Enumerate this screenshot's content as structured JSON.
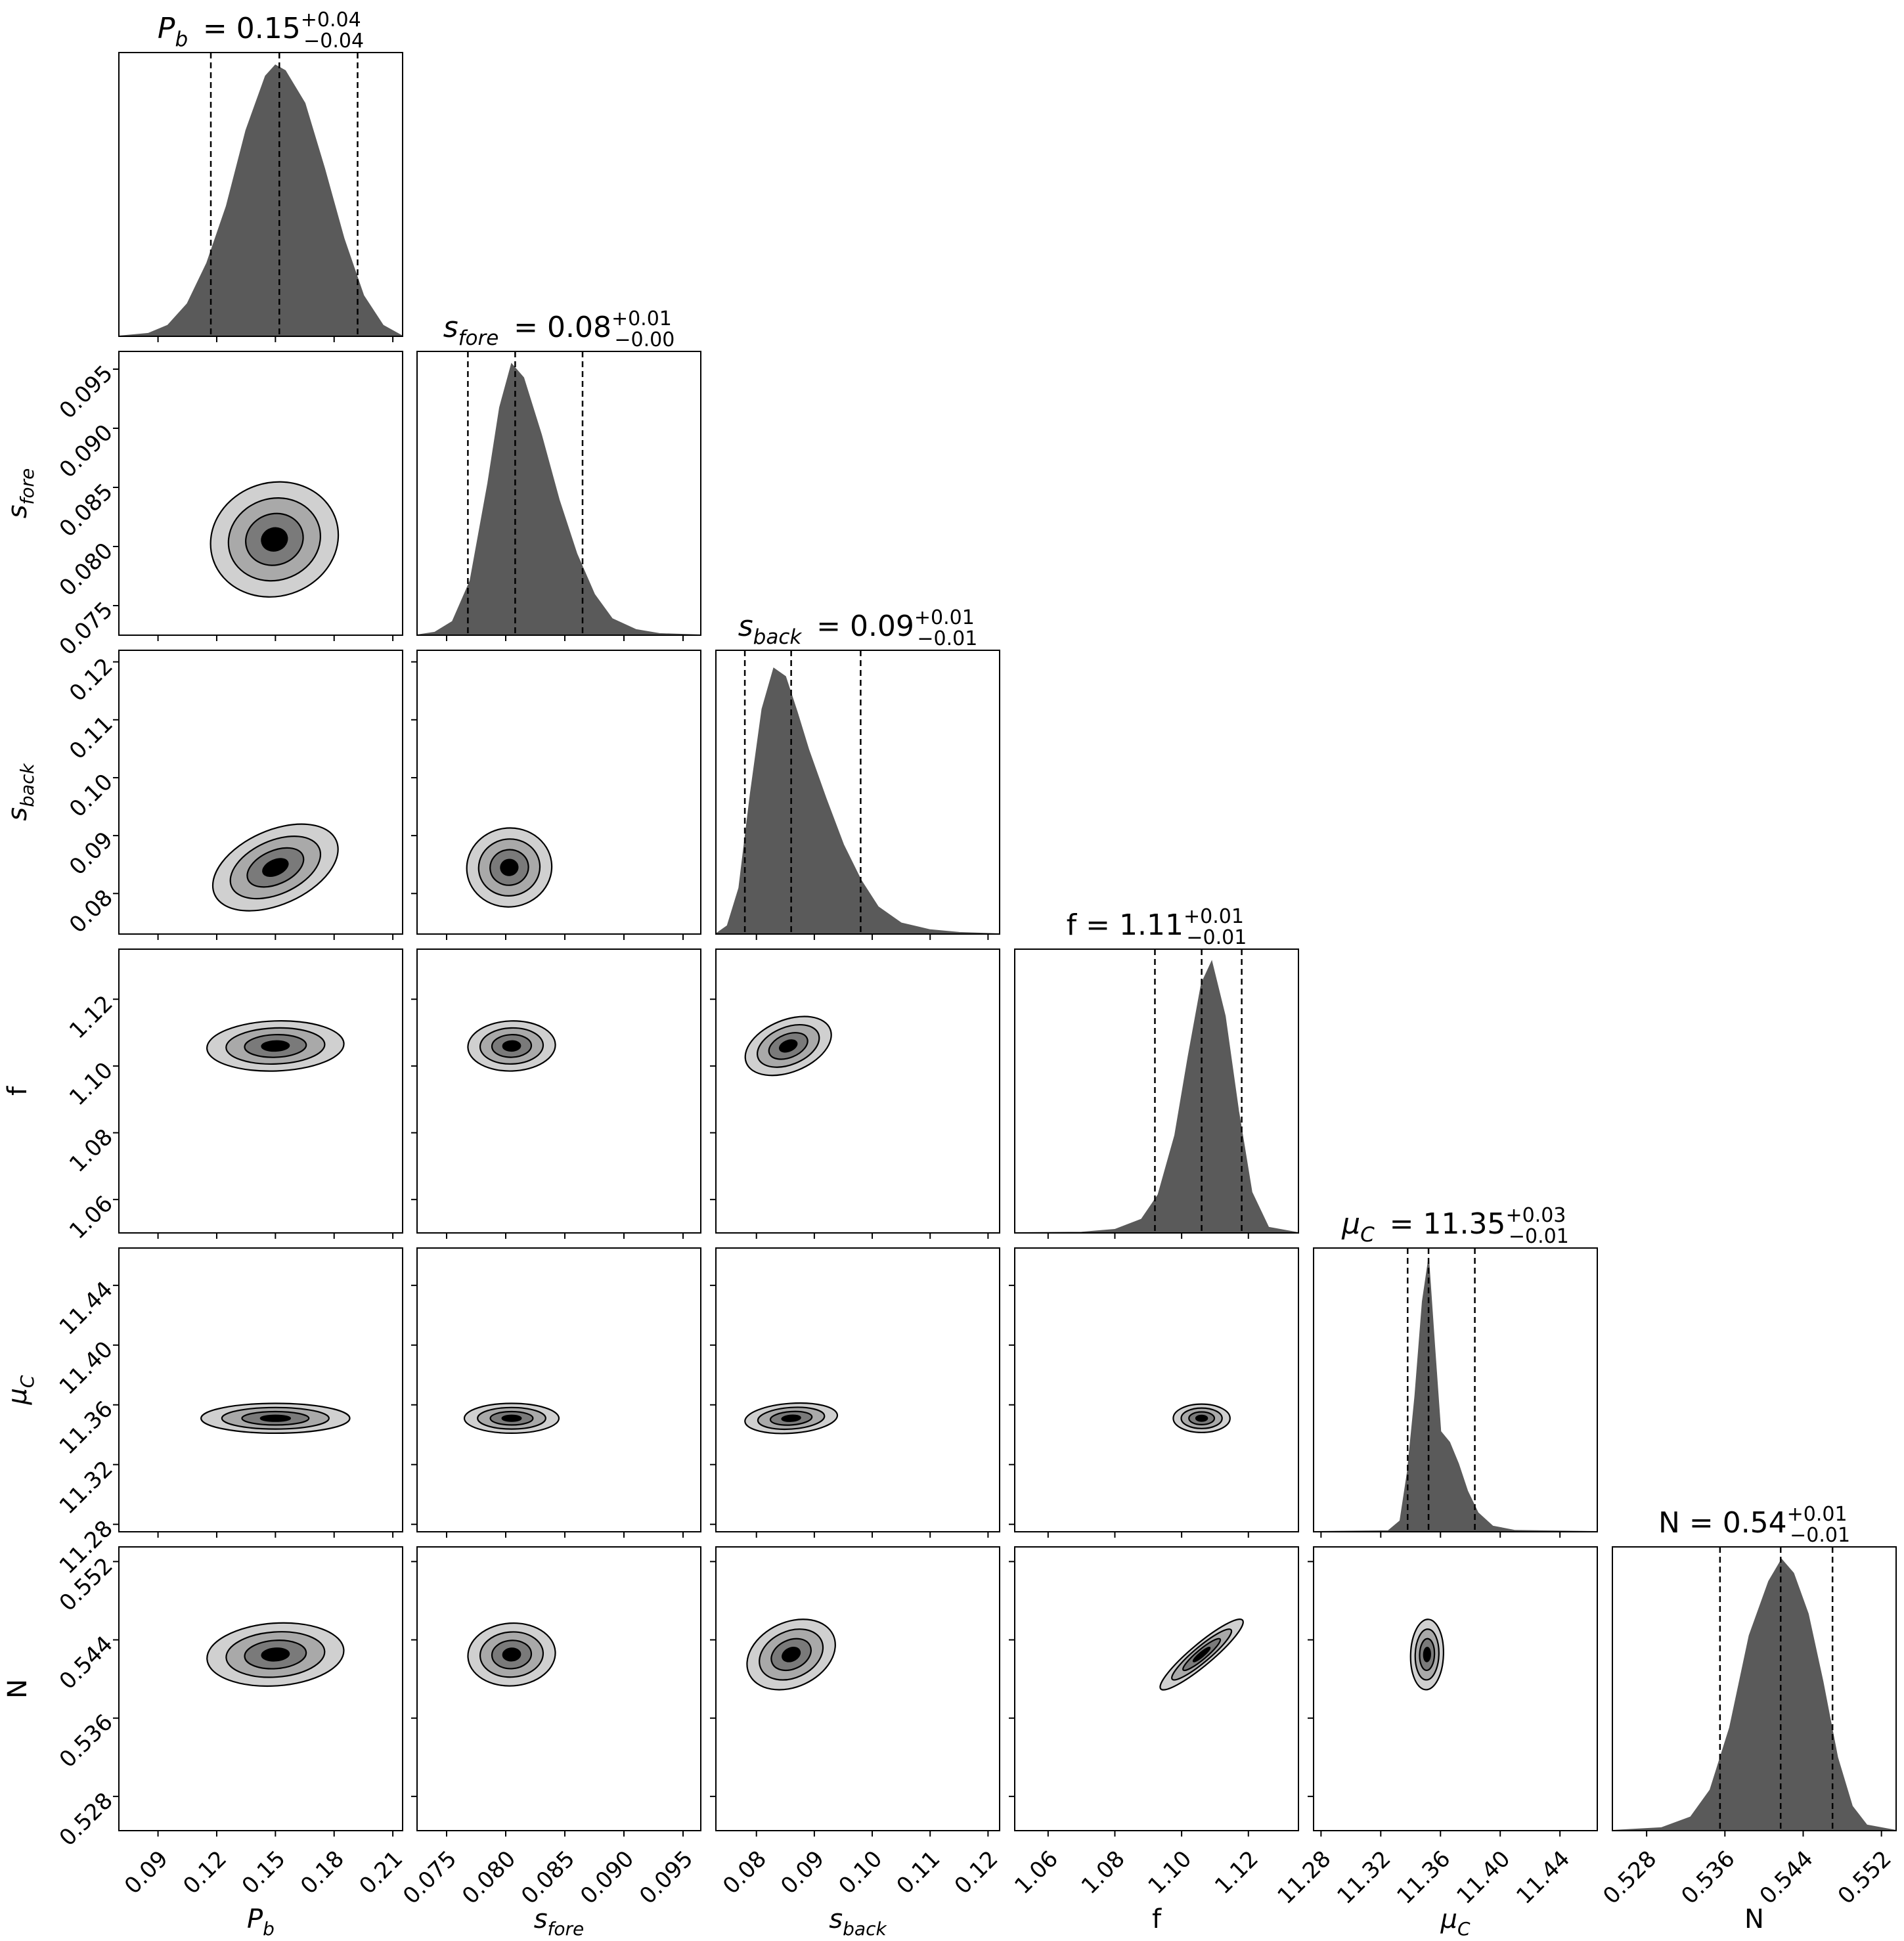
{
  "chart_data": {
    "type": "corner",
    "grid": false,
    "params": [
      {
        "name": "Pb",
        "axis_label": "P",
        "axis_sub": "b",
        "title_sym": "P",
        "title_sub": "b",
        "median": "0.15",
        "plus": "+0.04",
        "minus": "−0.04",
        "range": [
          0.07,
          0.215
        ],
        "q16": 0.117,
        "q50": 0.152,
        "q84": 0.192,
        "ticks": [
          "0.09",
          "0.12",
          "0.15",
          "0.18",
          "0.21"
        ],
        "tick_values": [
          0.09,
          0.12,
          0.15,
          0.18,
          0.21
        ],
        "hist_x": [
          0.07,
          0.085,
          0.095,
          0.105,
          0.115,
          0.125,
          0.135,
          0.145,
          0.15,
          0.155,
          0.165,
          0.175,
          0.185,
          0.195,
          0.205,
          0.215
        ],
        "hist_y": [
          0,
          0.01,
          0.04,
          0.12,
          0.27,
          0.48,
          0.76,
          0.96,
          1.0,
          0.98,
          0.86,
          0.62,
          0.36,
          0.15,
          0.04,
          0.0
        ]
      },
      {
        "name": "sfore",
        "axis_label": "s",
        "axis_sub": "fore",
        "title_sym": "s",
        "title_sub": "fore",
        "median": "0.08",
        "plus": "+0.01",
        "minus": "−0.00",
        "range": [
          0.0725,
          0.0965
        ],
        "q16": 0.0768,
        "q50": 0.0808,
        "q84": 0.0865,
        "ticks": [
          "0.075",
          "0.080",
          "0.085",
          "0.090",
          "0.095"
        ],
        "tick_values": [
          0.075,
          0.08,
          0.085,
          0.09,
          0.095
        ],
        "hist_x": [
          0.0725,
          0.074,
          0.0755,
          0.077,
          0.0785,
          0.0795,
          0.0805,
          0.0815,
          0.083,
          0.0845,
          0.086,
          0.0875,
          0.089,
          0.091,
          0.093,
          0.0965
        ],
        "hist_y": [
          0,
          0.01,
          0.05,
          0.2,
          0.56,
          0.84,
          1.0,
          0.95,
          0.74,
          0.5,
          0.3,
          0.15,
          0.06,
          0.02,
          0.005,
          0
        ]
      },
      {
        "name": "sback",
        "axis_label": "s",
        "axis_sub": "back",
        "title_sym": "s",
        "title_sub": "back",
        "median": "0.09",
        "plus": "+0.01",
        "minus": "−0.01",
        "range": [
          0.073,
          0.122
        ],
        "q16": 0.078,
        "q50": 0.086,
        "q84": 0.098,
        "ticks": [
          "0.08",
          "0.09",
          "0.10",
          "0.11",
          "0.12"
        ],
        "tick_values": [
          0.08,
          0.09,
          0.1,
          0.11,
          0.12
        ],
        "hist_x": [
          0.073,
          0.075,
          0.077,
          0.079,
          0.081,
          0.083,
          0.085,
          0.087,
          0.089,
          0.092,
          0.095,
          0.098,
          0.101,
          0.105,
          0.11,
          0.115,
          0.122
        ],
        "hist_y": [
          0,
          0.03,
          0.17,
          0.52,
          0.83,
          0.98,
          0.95,
          0.82,
          0.68,
          0.5,
          0.33,
          0.2,
          0.1,
          0.04,
          0.015,
          0.005,
          0
        ]
      },
      {
        "name": "f",
        "axis_label": "f",
        "axis_sub": "",
        "title_sym": "f",
        "title_sub": "",
        "median": "1.11",
        "plus": "+0.01",
        "minus": "−0.01",
        "range": [
          1.05,
          1.135
        ],
        "q16": 1.092,
        "q50": 1.106,
        "q84": 1.118,
        "ticks": [
          "1.06",
          "1.08",
          "1.10",
          "1.12"
        ],
        "tick_values": [
          1.06,
          1.08,
          1.1,
          1.12
        ],
        "hist_x": [
          1.05,
          1.07,
          1.08,
          1.088,
          1.093,
          1.098,
          1.102,
          1.106,
          1.109,
          1.113,
          1.117,
          1.121,
          1.126,
          1.135
        ],
        "hist_y": [
          0,
          0.002,
          0.012,
          0.05,
          0.14,
          0.36,
          0.65,
          0.92,
          1.0,
          0.8,
          0.45,
          0.15,
          0.02,
          0
        ]
      },
      {
        "name": "muC",
        "axis_label": "μ",
        "axis_sub": "C",
        "title_sym": "μ",
        "title_sub": "C",
        "median": "11.35",
        "plus": "+0.03",
        "minus": "−0.01",
        "range": [
          11.275,
          11.465
        ],
        "q16": 11.338,
        "q50": 11.352,
        "q84": 11.383,
        "ticks": [
          "11.28",
          "11.32",
          "11.36",
          "11.40",
          "11.44"
        ],
        "tick_values": [
          11.28,
          11.32,
          11.36,
          11.4,
          11.44
        ],
        "hist_x": [
          11.275,
          11.325,
          11.333,
          11.338,
          11.343,
          11.348,
          11.352,
          11.356,
          11.36,
          11.366,
          11.372,
          11.378,
          11.385,
          11.395,
          11.41,
          11.465
        ],
        "hist_y": [
          0,
          0.003,
          0.04,
          0.22,
          0.5,
          0.85,
          1.0,
          0.68,
          0.37,
          0.33,
          0.25,
          0.15,
          0.07,
          0.02,
          0.004,
          0
        ]
      },
      {
        "name": "N",
        "axis_label": "N",
        "axis_sub": "",
        "title_sym": "N",
        "title_sub": "",
        "median": "0.54",
        "plus": "+0.01",
        "minus": "−0.01",
        "range": [
          0.5245,
          0.5535
        ],
        "q16": 0.5355,
        "q50": 0.5417,
        "q84": 0.547,
        "ticks": [
          "0.528",
          "0.536",
          "0.544",
          "0.552"
        ],
        "tick_values": [
          0.528,
          0.536,
          0.544,
          0.552
        ],
        "hist_x": [
          0.5245,
          0.5295,
          0.5325,
          0.5345,
          0.5365,
          0.5385,
          0.5405,
          0.5418,
          0.543,
          0.5445,
          0.546,
          0.5475,
          0.549,
          0.5505,
          0.5535
        ],
        "hist_y": [
          0,
          0.01,
          0.05,
          0.15,
          0.38,
          0.72,
          0.92,
          1.0,
          0.95,
          0.8,
          0.55,
          0.27,
          0.09,
          0.02,
          0
        ]
      }
    ],
    "pairs": [
      {
        "x": 0,
        "y": 1,
        "cx": 0.1495,
        "cy": 0.0806,
        "wx": 0.033,
        "wy": 0.0048,
        "rot": -18
      },
      {
        "x": 0,
        "y": 2,
        "cx": 0.15,
        "cy": 0.0845,
        "wx": 0.034,
        "wy": 0.0064,
        "rot": -24
      },
      {
        "x": 1,
        "y": 2,
        "cx": 0.0803,
        "cy": 0.0845,
        "wx": 0.0036,
        "wy": 0.0068,
        "rot": -8
      },
      {
        "x": 0,
        "y": 3,
        "cx": 0.15,
        "cy": 1.106,
        "wx": 0.035,
        "wy": 0.0075,
        "rot": -2
      },
      {
        "x": 1,
        "y": 3,
        "cx": 0.0805,
        "cy": 1.106,
        "wx": 0.0037,
        "wy": 0.0075,
        "rot": -2
      },
      {
        "x": 2,
        "y": 3,
        "cx": 0.0855,
        "cy": 1.106,
        "wx": 0.0078,
        "wy": 0.0078,
        "rot": -22
      },
      {
        "x": 0,
        "y": 4,
        "cx": 0.15,
        "cy": 11.351,
        "wx": 0.038,
        "wy": 0.01,
        "rot": 0
      },
      {
        "x": 1,
        "y": 4,
        "cx": 0.0805,
        "cy": 11.351,
        "wx": 0.004,
        "wy": 0.01,
        "rot": 0
      },
      {
        "x": 2,
        "y": 4,
        "cx": 0.086,
        "cy": 11.351,
        "wx": 0.008,
        "wy": 0.01,
        "rot": -4
      },
      {
        "x": 3,
        "y": 4,
        "cx": 1.106,
        "cy": 11.351,
        "wx": 0.0085,
        "wy": 0.0095,
        "rot": 0
      },
      {
        "x": 0,
        "y": 5,
        "cx": 0.15,
        "cy": 0.5425,
        "wx": 0.035,
        "wy": 0.0032,
        "rot": -4
      },
      {
        "x": 1,
        "y": 5,
        "cx": 0.0805,
        "cy": 0.5425,
        "wx": 0.0037,
        "wy": 0.0032,
        "rot": -4
      },
      {
        "x": 2,
        "y": 5,
        "cx": 0.086,
        "cy": 0.5425,
        "wx": 0.008,
        "wy": 0.0033,
        "rot": -25
      },
      {
        "x": 3,
        "y": 5,
        "cx": 1.106,
        "cy": 0.5425,
        "wx": 0.016,
        "wy": 0.0011,
        "rot": -40
      },
      {
        "x": 4,
        "y": 5,
        "cx": 11.351,
        "cy": 0.5425,
        "wx": 0.011,
        "wy": 0.0036,
        "rot": 2
      }
    ],
    "contour_fills": [
      "#d0d0d0",
      "#a9a9a9",
      "#7a7a7a",
      "#000000"
    ],
    "hist_fill": "#5a5a5a"
  }
}
